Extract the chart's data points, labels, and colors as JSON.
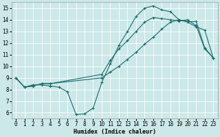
{
  "xlabel": "Humidex (Indice chaleur)",
  "bg_color": "#cce8e8",
  "grid_color": "#ffffff",
  "line_color": "#1a6b6b",
  "xlim": [
    -0.5,
    23.5
  ],
  "ylim": [
    5.5,
    15.5
  ],
  "xticks": [
    0,
    1,
    2,
    3,
    4,
    5,
    6,
    7,
    8,
    9,
    10,
    11,
    12,
    13,
    14,
    15,
    16,
    17,
    18,
    19,
    20,
    21,
    22,
    23
  ],
  "yticks": [
    6,
    7,
    8,
    9,
    10,
    11,
    12,
    13,
    14,
    15
  ],
  "curve1_x": [
    0,
    1,
    2,
    3,
    4,
    5,
    6,
    7,
    8,
    9,
    10,
    11,
    12,
    13,
    14,
    15,
    16,
    17,
    18,
    19,
    20,
    21,
    22,
    23
  ],
  "curve1_y": [
    9,
    8.2,
    8.4,
    8.4,
    8.3,
    8.2,
    7.8,
    5.85,
    5.9,
    6.4,
    8.6,
    10.2,
    11.8,
    13.0,
    14.3,
    15.0,
    15.2,
    14.85,
    14.7,
    14.0,
    13.85,
    13.85,
    11.6,
    10.7
  ],
  "curve2_x": [
    0,
    1,
    2,
    3,
    4,
    10,
    11,
    12,
    13,
    14,
    15,
    16,
    17,
    18,
    19,
    20,
    21,
    22,
    23
  ],
  "curve2_y": [
    9,
    8.2,
    8.3,
    8.5,
    8.5,
    9.3,
    10.5,
    11.5,
    12.2,
    13.0,
    13.8,
    14.2,
    14.1,
    14.0,
    13.9,
    14.0,
    13.5,
    11.5,
    10.7
  ],
  "curve3_x": [
    0,
    1,
    2,
    3,
    4,
    10,
    11,
    12,
    13,
    14,
    15,
    16,
    17,
    18,
    19,
    20,
    21,
    22,
    23
  ],
  "curve3_y": [
    9,
    8.2,
    8.3,
    8.5,
    8.5,
    9.0,
    9.5,
    10.0,
    10.6,
    11.2,
    11.9,
    12.5,
    13.2,
    13.8,
    14.0,
    13.8,
    13.4,
    13.1,
    10.7
  ]
}
